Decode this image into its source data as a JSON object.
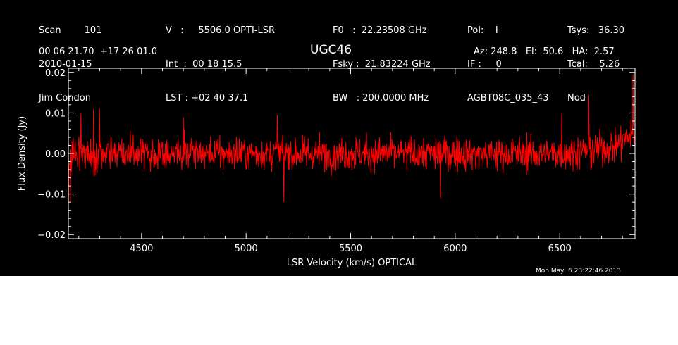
{
  "header": {
    "col1": [
      "Scan        101",
      "2010-01-15",
      "Jim Condon"
    ],
    "col2": [
      "V   :     5506.0 OPTI-LSR",
      "Int  :  00 18 15.5",
      "LST : +02 40 37.1"
    ],
    "col3": [
      "F0   :  22.23508 GHz",
      "Fsky :  21.83224 GHz",
      "BW   : 200.0000 MHz"
    ],
    "col4": [
      "Pol:    I",
      "IF :     0",
      "AGBT08C_035_43"
    ],
    "col5": [
      "Tsys:   36.30",
      "Tcal:    5.26",
      "Nod"
    ],
    "coords": "00 06 21.70  +17 26 01.0",
    "source": "UGC46",
    "pointing": "Az: 248.8   El:  50.6   HA:  2.57",
    "timestamp": "Mon May  6 23:22:46 2013"
  },
  "colors": {
    "background": "#000000",
    "axes": "#ffffff",
    "trace": "#ff0000"
  },
  "chart_data": {
    "type": "line",
    "title": "UGC46",
    "xlabel": "LSR Velocity (km/s) OPTICAL",
    "ylabel": "Flux Density (Jy)",
    "xlim": [
      4150,
      6860
    ],
    "ylim": [
      -0.021,
      0.021
    ],
    "xticks": [
      4500,
      5000,
      5500,
      6000,
      6500
    ],
    "xtick_labels": [
      "4500",
      "5000",
      "5500",
      "6000",
      "6500"
    ],
    "yticks": [
      -0.02,
      -0.01,
      0.0,
      0.01,
      0.02
    ],
    "ytick_labels": [
      "−0.02",
      "−0.01",
      "0.00",
      "0.01",
      "0.02"
    ],
    "grid": false,
    "series": [
      {
        "color": "#ff0000",
        "x_start": 4150,
        "x_end": 6860,
        "n_channels": 1400,
        "noise_rms_jy": 0.0035,
        "envelope": [
          [
            4150,
            -0.003
          ],
          [
            4180,
            0.0
          ],
          [
            4300,
            0.0
          ],
          [
            5000,
            0.0
          ],
          [
            5500,
            0.0
          ],
          [
            6000,
            0.0
          ],
          [
            6500,
            0.0
          ],
          [
            6750,
            0.0015
          ],
          [
            6860,
            0.005
          ]
        ],
        "peaks": [
          [
            4150,
            -0.014
          ],
          [
            4160,
            -0.012
          ],
          [
            4210,
            0.01
          ],
          [
            4270,
            0.011
          ],
          [
            4300,
            0.011
          ],
          [
            4700,
            0.009
          ],
          [
            5150,
            0.0095
          ],
          [
            5180,
            -0.012
          ],
          [
            5930,
            -0.011
          ],
          [
            6510,
            0.01
          ],
          [
            6640,
            0.0145
          ],
          [
            6850,
            0.0195
          ]
        ]
      }
    ]
  }
}
